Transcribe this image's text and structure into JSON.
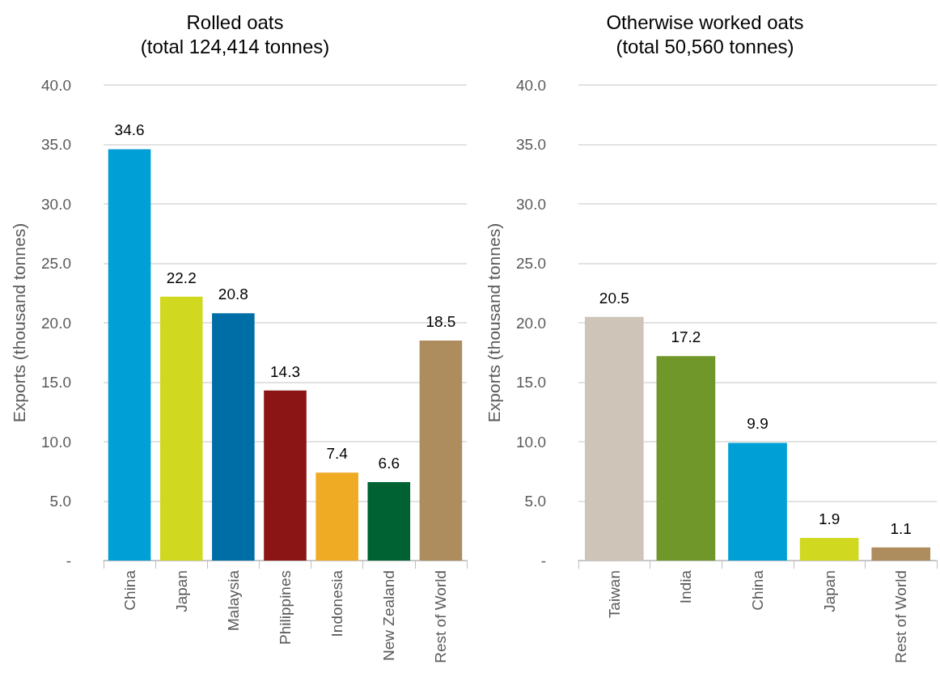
{
  "chart_data": [
    {
      "type": "bar",
      "title": "Rolled oats",
      "subtitle": "(total 124,414 tonnes)",
      "ylabel": "Exports (thousand tonnes)",
      "categories": [
        "China",
        "Japan",
        "Malaysia",
        "Philippines",
        "Indonesia",
        "New Zealand",
        "Rest of World"
      ],
      "values": [
        34.6,
        22.2,
        20.8,
        14.3,
        7.4,
        6.6,
        18.5
      ],
      "colors": [
        "#00a0d6",
        "#d0d920",
        "#006ea6",
        "#8b1414",
        "#f0ab24",
        "#006233",
        "#ad8c5e"
      ],
      "ylim": [
        0,
        40
      ],
      "yticks": [
        {
          "value": 0,
          "label": "-"
        },
        {
          "value": 5,
          "label": "5.0"
        },
        {
          "value": 10,
          "label": "10.0"
        },
        {
          "value": 15,
          "label": "15.0"
        },
        {
          "value": 20,
          "label": "20.0"
        },
        {
          "value": 25,
          "label": "25.0"
        },
        {
          "value": 30,
          "label": "30.0"
        },
        {
          "value": 35,
          "label": "35.0"
        },
        {
          "value": 40,
          "label": "40.0"
        }
      ],
      "grid": "y",
      "data_labels": true
    },
    {
      "type": "bar",
      "title": "Otherwise worked oats",
      "subtitle": "(total 50,560 tonnes)",
      "ylabel": "Exports (thousand tonnes)",
      "categories": [
        "Taiwan",
        "India",
        "China",
        "Japan",
        "Rest of World"
      ],
      "values": [
        20.5,
        17.2,
        9.9,
        1.9,
        1.1
      ],
      "colors": [
        "#cfc4b8",
        "#6f972a",
        "#00a0d6",
        "#d0d920",
        "#ad8c5e"
      ],
      "ylim": [
        0,
        40
      ],
      "yticks": [
        {
          "value": 0,
          "label": "-"
        },
        {
          "value": 5,
          "label": "5.0"
        },
        {
          "value": 10,
          "label": "10.0"
        },
        {
          "value": 15,
          "label": "15.0"
        },
        {
          "value": 20,
          "label": "20.0"
        },
        {
          "value": 25,
          "label": "25.0"
        },
        {
          "value": 30,
          "label": "30.0"
        },
        {
          "value": 35,
          "label": "35.0"
        },
        {
          "value": 40,
          "label": "40.0"
        }
      ],
      "grid": "y",
      "data_labels": true
    }
  ]
}
